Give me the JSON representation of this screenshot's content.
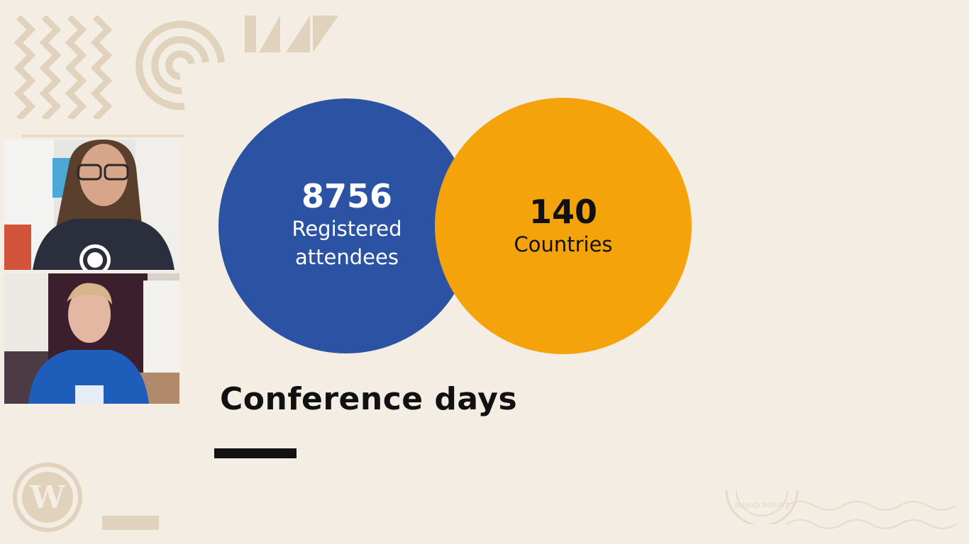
{
  "colors": {
    "background": "#f4ede4",
    "decor": "#e0d2bd",
    "blue_circle": "#2c52a3",
    "orange_circle": "#f4a30a",
    "heading": "#111111"
  },
  "stats": {
    "attendees": {
      "value": "8756",
      "label_line1": "Registered",
      "label_line2": "attendees"
    },
    "countries": {
      "value": "140",
      "label": "Countries"
    }
  },
  "heading": "Conference days",
  "participants": [
    {
      "name_icon": "participant-video-icon"
    },
    {
      "name_icon": "participant-video-icon"
    }
  ],
  "watermark_text": "Europe Online"
}
